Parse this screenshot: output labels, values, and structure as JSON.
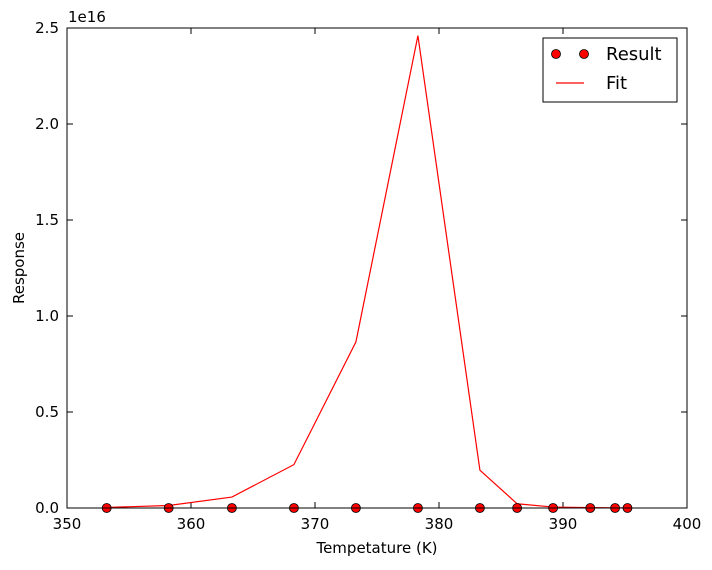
{
  "chart_data": {
    "type": "line",
    "title": "",
    "xlabel": "Tempetature (K)",
    "ylabel": "Response",
    "y_offset_label": "1e16",
    "xlim": [
      350,
      400
    ],
    "ylim": [
      0,
      2.5
    ],
    "x_ticks": [
      350,
      360,
      370,
      380,
      390,
      400
    ],
    "y_ticks": [
      0.0,
      0.5,
      1.0,
      1.5,
      2.0,
      2.5
    ],
    "x_tick_labels": [
      "350",
      "360",
      "370",
      "380",
      "390",
      "400"
    ],
    "y_tick_labels": [
      "0.0",
      "0.5",
      "1.0",
      "1.5",
      "2.0",
      "2.5"
    ],
    "grid": false,
    "legend_position": "top-right",
    "series": [
      {
        "name": "Result",
        "kind": "scatter",
        "color": "#ff0000",
        "x": [
          353.2,
          358.2,
          363.3,
          368.3,
          373.3,
          378.3,
          383.3,
          386.3,
          389.2,
          392.2,
          394.2,
          395.2
        ],
        "y": [
          0,
          0,
          0,
          0,
          0,
          0,
          0,
          0,
          0,
          0,
          0,
          0
        ]
      },
      {
        "name": "Fit",
        "kind": "line",
        "color": "#ff0000",
        "x": [
          353.2,
          358.2,
          363.3,
          368.3,
          373.3,
          378.3,
          383.3,
          386.3,
          389.2,
          392.2,
          394.2,
          395.2
        ],
        "y": [
          0.003,
          0.013,
          0.057,
          0.226,
          0.865,
          2.46,
          0.197,
          0.022,
          0.005,
          0.002,
          0.001,
          0.0007
        ]
      }
    ]
  }
}
